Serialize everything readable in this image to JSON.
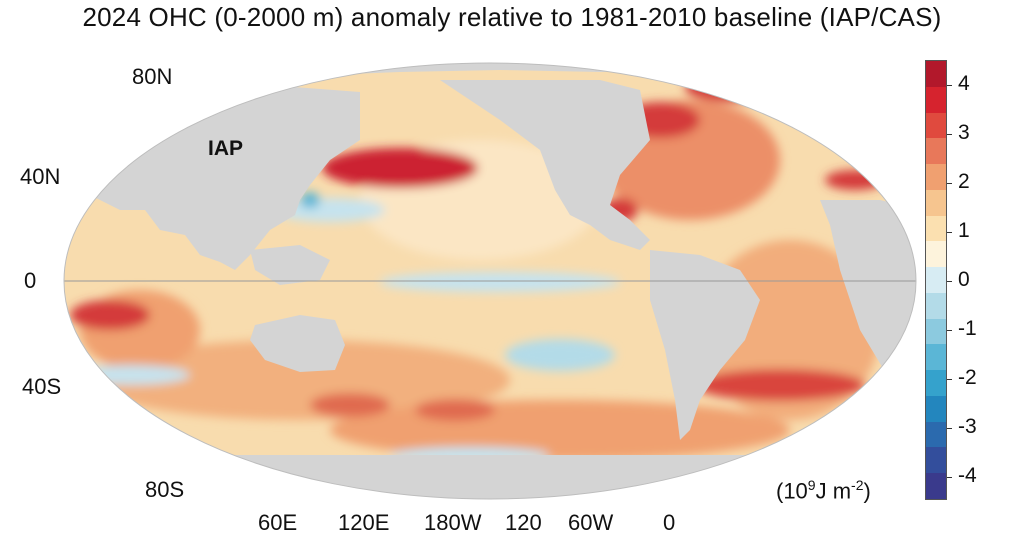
{
  "title": "2024 OHC (0-2000 m) anomaly relative to 1981-2010 baseline (IAP/CAS)",
  "model_label": "IAP",
  "lat_labels": [
    "80N",
    "40N",
    "0",
    "40S",
    "80S"
  ],
  "lon_labels": [
    "60E",
    "120E",
    "180W",
    "120",
    "60W",
    "0"
  ],
  "colorbar": {
    "tick_labels": [
      "4",
      "3",
      "2",
      "1",
      "0",
      "-1",
      "-2",
      "-3",
      "-4"
    ],
    "colors": [
      "#b2182b",
      "#d6232e",
      "#e04a3e",
      "#e8785a",
      "#f0a070",
      "#f6c58f",
      "#fbe0b0",
      "#fdf3dc",
      "#d7ecf3",
      "#b3dbe8",
      "#8ccadf",
      "#5bb6d6",
      "#35a2cc",
      "#2386be",
      "#2b6aae",
      "#334e9c",
      "#3a3a8c"
    ],
    "units_base": "(10",
    "units_exp1": "9",
    "units_mid": "J m",
    "units_exp2": "-2",
    "units_end": ")"
  },
  "colors": {
    "land": "#d4d4d4",
    "ocean_base": "#f8dcae",
    "equator_line": "#999999"
  }
}
